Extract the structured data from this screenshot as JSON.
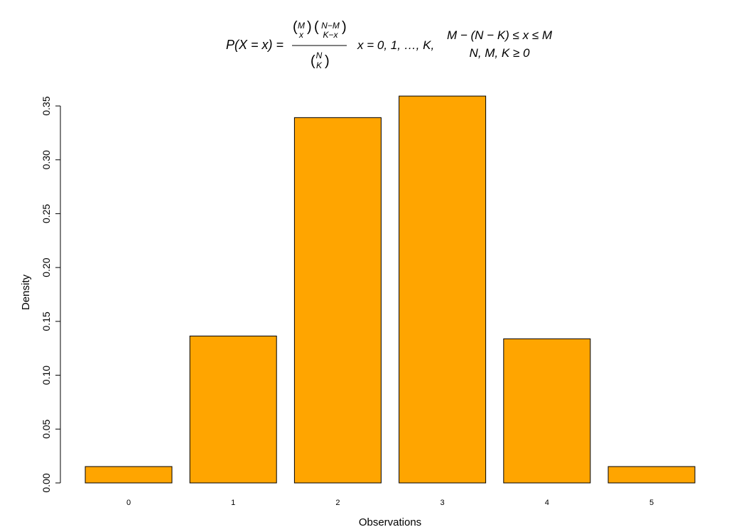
{
  "chart_data": {
    "type": "bar",
    "title_formula": {
      "lhs": "P(X = x) =",
      "binom1_top": "M",
      "binom1_bottom": "x",
      "binom2_top": "N−M",
      "binom2_bottom": "K−x",
      "binom3_top": "N",
      "binom3_bottom": "K",
      "support": "x = 0, 1, …, K,",
      "constraint1": "M − (N − K) ≤ x ≤ M",
      "constraint2": "N, M, K ≥ 0"
    },
    "categories": [
      "0",
      "1",
      "2",
      "3",
      "4",
      "5"
    ],
    "values": [
      0.0152,
      0.1364,
      0.3392,
      0.3592,
      0.1338,
      0.0152
    ],
    "xlabel": "Observations",
    "ylabel": "Density",
    "ylim": [
      0,
      0.35
    ],
    "yticks": [
      0.0,
      0.05,
      0.1,
      0.15,
      0.2,
      0.25,
      0.3,
      0.35
    ],
    "ytick_labels": [
      "0.00",
      "0.05",
      "0.10",
      "0.15",
      "0.20",
      "0.25",
      "0.30",
      "0.35"
    ],
    "bar_color": "#FFA500",
    "bar_edge_color": "#000000",
    "grid": false,
    "legend": "none"
  }
}
